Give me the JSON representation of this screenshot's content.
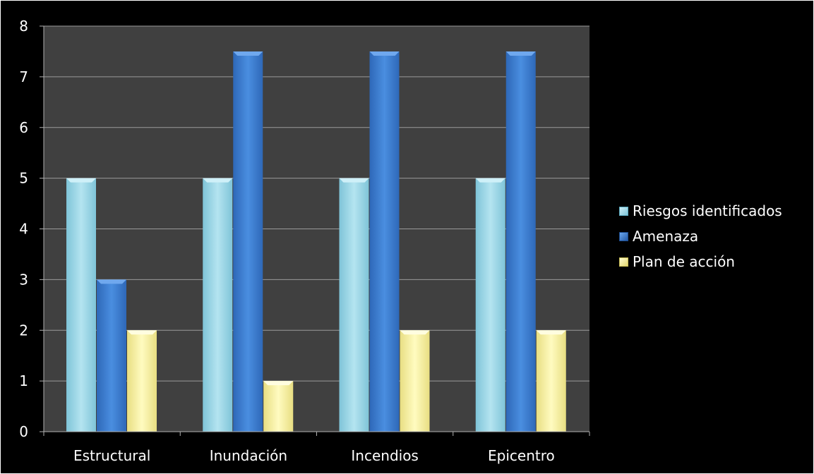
{
  "chart_data": {
    "type": "bar",
    "title": "",
    "xlabel": "",
    "ylabel": "",
    "categories": [
      "Estructural",
      "Inundación",
      "Incendios",
      "Epicentro"
    ],
    "series": [
      {
        "name": "Riesgos identificados",
        "values": [
          5,
          5,
          5,
          5
        ],
        "color": "#9dd8e8"
      },
      {
        "name": "Amenaza",
        "values": [
          3,
          7.5,
          7.5,
          7.5
        ],
        "color": "#3f7fd0"
      },
      {
        "name": "Plan de acción",
        "values": [
          2,
          1,
          2,
          2
        ],
        "color": "#fbf3a0"
      }
    ],
    "ylim": [
      0,
      8
    ],
    "yticks": [
      "0",
      "1",
      "2",
      "3",
      "4",
      "5",
      "6",
      "7",
      "8"
    ],
    "grid": true,
    "legend_position": "right",
    "plot_background": "#404040",
    "page_background": "#000000"
  }
}
